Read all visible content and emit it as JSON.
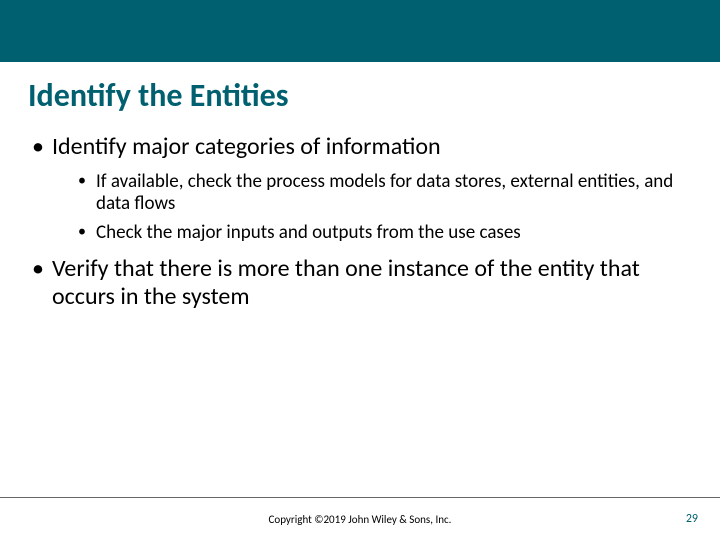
{
  "colors": {
    "accent": "#006070",
    "text": "#000000",
    "background": "#ffffff",
    "divider": "#666666"
  },
  "title": "Identify the Entities",
  "bullets": {
    "items": [
      {
        "text": "Identify major categories of information",
        "sub": [
          "If available, check the process models for data stores, external entities, and data flows",
          "Check the major inputs and outputs from the use cases"
        ]
      },
      {
        "text": "Verify that there is more than one instance of the entity that occurs in the system",
        "sub": []
      }
    ]
  },
  "footer": {
    "copyright": "Copyright ©2019 John Wiley & Sons, Inc.",
    "page_number": "29"
  }
}
